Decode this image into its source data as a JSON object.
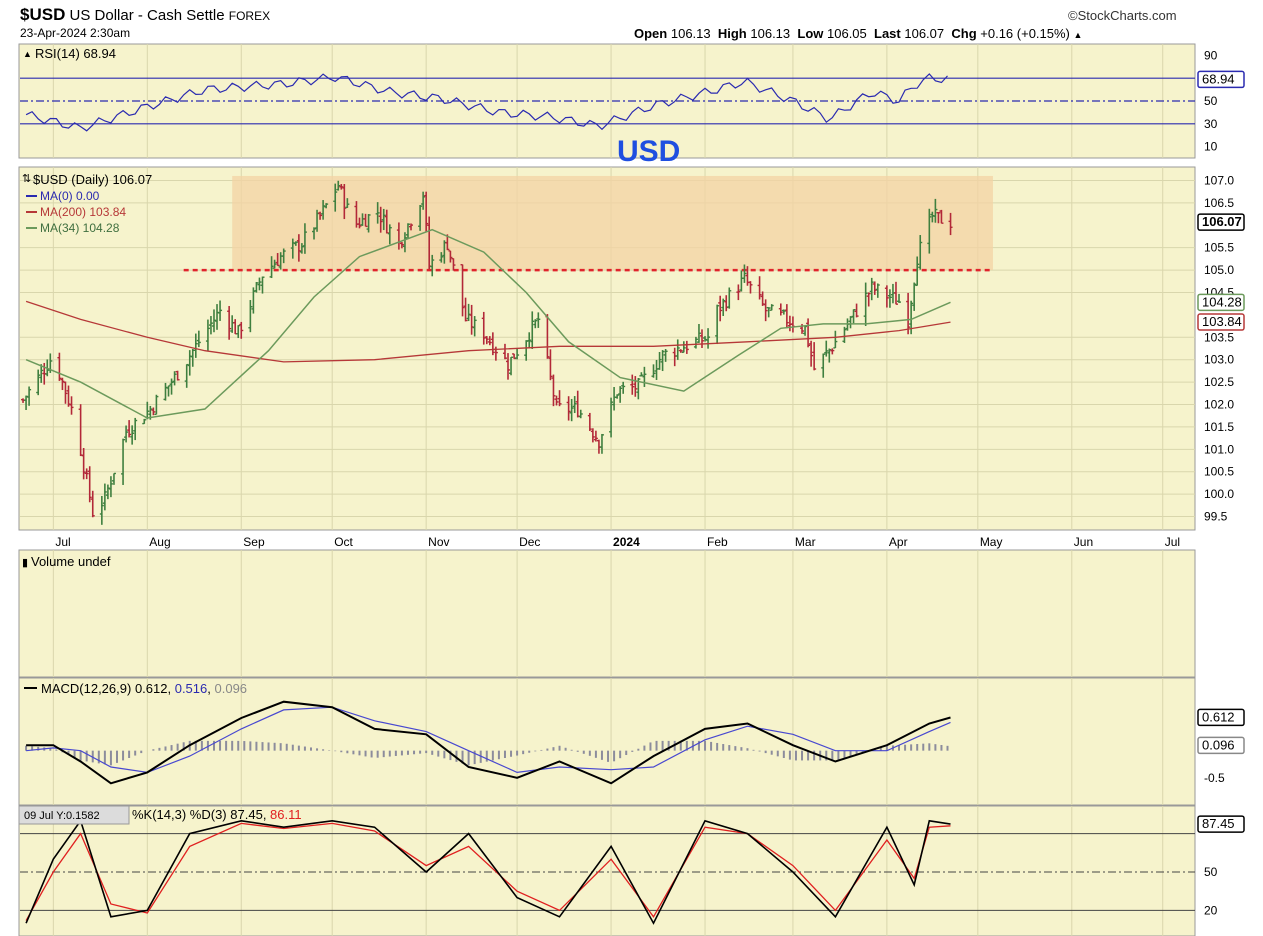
{
  "header": {
    "symbol": "$USD",
    "name": "US Dollar - Cash Settle",
    "exchange": "FOREX",
    "date": "23-Apr-2024 2:30am",
    "brand": "©StockCharts.com",
    "open_label": "Open",
    "open": "106.13",
    "high_label": "High",
    "high": "106.13",
    "low_label": "Low",
    "low": "106.05",
    "last_label": "Last",
    "last": "106.07",
    "chg_label": "Chg",
    "chg": "+0.16 (+0.15%)",
    "chg_icon": "triangle-up-icon"
  },
  "colors": {
    "panel_bg": "#f6f3cc",
    "grid": "#d9d6ac",
    "up_bar": "#3f7f3f",
    "down_bar": "#b22838",
    "ma200": "#b63838",
    "ma34": "#6c9a5c",
    "rsi": "#2a2ab0",
    "resistance_zone": "#f3d3a4",
    "support_line": "#e0242c",
    "annotation": "#1f4fe0",
    "macd_line": "#000000",
    "signal_line": "#4848d0",
    "histogram": "#8c8c9c",
    "stoch_k": "#000000",
    "stoch_d": "#e02020"
  },
  "annotation": {
    "text": "USD"
  },
  "chart_data": [
    {
      "type": "line",
      "title": "RSI(14) 68.94",
      "current": 68.94,
      "ylim": [
        0,
        100
      ],
      "ticks": [
        90,
        70,
        50,
        30,
        10
      ],
      "reference_lines": [
        70,
        50,
        30
      ],
      "x": [
        "2023-06-22",
        "2023-07-10",
        "2023-08-01",
        "2023-08-20",
        "2023-09-15",
        "2023-10-02",
        "2023-10-20",
        "2023-11-06",
        "2023-11-25",
        "2023-12-12",
        "2023-12-28",
        "2024-01-15",
        "2024-02-02",
        "2024-02-14",
        "2024-03-01",
        "2024-03-13",
        "2024-03-27",
        "2024-04-05",
        "2024-04-10",
        "2024-04-15",
        "2024-04-22"
      ],
      "values": [
        38,
        26,
        45,
        60,
        65,
        71,
        58,
        52,
        40,
        36,
        28,
        46,
        58,
        67,
        50,
        34,
        58,
        50,
        64,
        70,
        69
      ]
    },
    {
      "type": "candlestick",
      "title": "$USD (Daily) 106.07",
      "legend": [
        "MA(0) 0.00",
        "MA(200) 103.84",
        "MA(34) 104.28"
      ],
      "last_value": 106.07,
      "ma200_value": 103.84,
      "ma34_value": 104.28,
      "ylim": [
        99.2,
        107.3
      ],
      "y_ticks": [
        107.0,
        106.5,
        106.07,
        105.5,
        105.0,
        104.5,
        103.5,
        103.0,
        102.5,
        102.0,
        101.5,
        101.0,
        100.5,
        100.0,
        99.5
      ],
      "x_range": [
        "2023-06-20",
        "2024-07-10"
      ],
      "x_ticks": [
        "Jul",
        "Aug",
        "Sep",
        "Oct",
        "Nov",
        "Dec",
        "2024",
        "Feb",
        "Mar",
        "Apr",
        "May",
        "Jun",
        "Jul"
      ],
      "resistance_zone": [
        105.0,
        107.1
      ],
      "resistance_zone_dates": [
        "2023-08-29",
        "2024-05-06"
      ],
      "support_line": 105.0,
      "support_line_dates": [
        "2023-08-13",
        "2024-05-06"
      ],
      "price_path": {
        "x": [
          "2023-06-21",
          "2023-06-30",
          "2023-07-03",
          "2023-07-08",
          "2023-07-14",
          "2023-07-18",
          "2023-07-25",
          "2023-08-02",
          "2023-08-10",
          "2023-08-18",
          "2023-08-25",
          "2023-08-31",
          "2023-09-08",
          "2023-09-14",
          "2023-09-21",
          "2023-09-27",
          "2023-10-03",
          "2023-10-08",
          "2023-10-16",
          "2023-10-23",
          "2023-10-31",
          "2023-11-02",
          "2023-11-08",
          "2023-11-14",
          "2023-11-20",
          "2023-11-28",
          "2023-12-04",
          "2023-12-08",
          "2023-12-14",
          "2023-12-21",
          "2023-12-28",
          "2024-01-03",
          "2024-01-10",
          "2024-01-18",
          "2024-01-25",
          "2024-02-02",
          "2024-02-05",
          "2024-02-14",
          "2024-02-21",
          "2024-02-28",
          "2024-03-05",
          "2024-03-08",
          "2024-03-14",
          "2024-03-19",
          "2024-03-27",
          "2024-04-05",
          "2024-04-08",
          "2024-04-11",
          "2024-04-16",
          "2024-04-22"
        ],
        "values": [
          102.1,
          103.0,
          102.7,
          101.7,
          99.6,
          99.9,
          101.4,
          101.9,
          102.6,
          103.4,
          104.1,
          103.6,
          104.9,
          105.3,
          105.6,
          106.2,
          106.9,
          106.0,
          106.3,
          105.6,
          106.7,
          105.1,
          105.6,
          103.9,
          103.6,
          102.9,
          103.5,
          103.9,
          101.9,
          101.9,
          101.2,
          102.3,
          102.4,
          103.1,
          103.3,
          103.5,
          104.1,
          104.8,
          104.1,
          103.9,
          103.7,
          102.8,
          103.3,
          103.8,
          104.6,
          104.3,
          103.9,
          105.3,
          106.2,
          106.07
        ]
      },
      "ma34": {
        "x": [
          "2023-06-22",
          "2023-07-10",
          "2023-08-01",
          "2023-08-20",
          "2023-09-10",
          "2023-09-25",
          "2023-10-10",
          "2023-11-03",
          "2023-11-20",
          "2023-12-04",
          "2023-12-18",
          "2024-01-04",
          "2024-01-25",
          "2024-02-12",
          "2024-02-26",
          "2024-03-11",
          "2024-03-25",
          "2024-04-09",
          "2024-04-22"
        ],
        "values": [
          103.0,
          102.5,
          101.7,
          101.9,
          103.2,
          104.4,
          105.3,
          105.9,
          105.4,
          104.5,
          103.4,
          102.6,
          102.3,
          103.1,
          103.7,
          103.8,
          103.8,
          103.9,
          104.28
        ]
      },
      "ma200": {
        "x": [
          "2023-06-22",
          "2023-07-10",
          "2023-08-01",
          "2023-08-20",
          "2023-09-15",
          "2023-10-15",
          "2023-11-15",
          "2023-12-15",
          "2024-01-15",
          "2024-02-15",
          "2024-03-15",
          "2024-04-05",
          "2024-04-22"
        ],
        "values": [
          104.3,
          103.9,
          103.5,
          103.2,
          102.95,
          103.0,
          103.2,
          103.3,
          103.3,
          103.4,
          103.5,
          103.65,
          103.84
        ]
      }
    },
    {
      "type": "bar",
      "title": "Volume undef",
      "values": []
    },
    {
      "type": "line",
      "title": "MACD(12,26,9)",
      "macd": 0.612,
      "signal": 0.516,
      "histogram": 0.096,
      "ylim": [
        -1.0,
        1.3
      ],
      "ticks": [
        -0.5
      ],
      "x": [
        "2023-06-22",
        "2023-07-01",
        "2023-07-10",
        "2023-07-20",
        "2023-08-01",
        "2023-08-15",
        "2023-09-01",
        "2023-09-15",
        "2023-10-01",
        "2023-10-15",
        "2023-11-01",
        "2023-11-15",
        "2023-12-01",
        "2023-12-15",
        "2024-01-01",
        "2024-01-15",
        "2024-02-01",
        "2024-02-15",
        "2024-03-01",
        "2024-03-15",
        "2024-04-01",
        "2024-04-15",
        "2024-04-22"
      ],
      "macd_values": [
        0.1,
        0.1,
        -0.2,
        -0.6,
        -0.4,
        0.1,
        0.6,
        0.9,
        0.8,
        0.4,
        0.3,
        -0.3,
        -0.5,
        -0.2,
        -0.6,
        -0.1,
        0.4,
        0.5,
        0.1,
        -0.2,
        0.1,
        0.5,
        0.61
      ],
      "signal_values": [
        0.0,
        0.05,
        0.0,
        -0.3,
        -0.4,
        -0.1,
        0.4,
        0.75,
        0.8,
        0.55,
        0.35,
        0.0,
        -0.4,
        -0.3,
        -0.35,
        -0.3,
        0.2,
        0.45,
        0.3,
        0.0,
        0.0,
        0.35,
        0.52
      ]
    },
    {
      "type": "line",
      "title": "%K(14,3) %D(3)",
      "k": 87.45,
      "d": 86.11,
      "ylim": [
        0,
        100
      ],
      "ticks": [
        50,
        20
      ],
      "reference_lines": [
        80,
        50,
        20
      ],
      "x": [
        "2023-06-22",
        "2023-07-01",
        "2023-07-10",
        "2023-07-20",
        "2023-08-01",
        "2023-08-15",
        "2023-09-01",
        "2023-09-15",
        "2023-10-01",
        "2023-10-15",
        "2023-11-01",
        "2023-11-15",
        "2023-12-01",
        "2023-12-15",
        "2024-01-01",
        "2024-01-15",
        "2024-02-01",
        "2024-02-15",
        "2024-03-01",
        "2024-03-15",
        "2024-04-01",
        "2024-04-10",
        "2024-04-15",
        "2024-04-22"
      ],
      "k_values": [
        10,
        60,
        90,
        15,
        20,
        80,
        90,
        85,
        90,
        85,
        50,
        80,
        30,
        15,
        70,
        10,
        90,
        80,
        50,
        15,
        85,
        40,
        90,
        87.45
      ],
      "d_values": [
        12,
        50,
        80,
        25,
        18,
        70,
        88,
        84,
        88,
        82,
        55,
        70,
        35,
        20,
        60,
        15,
        85,
        80,
        55,
        20,
        75,
        45,
        85,
        86.11
      ],
      "tooltip": "09 Jul Y:0.1582"
    }
  ]
}
